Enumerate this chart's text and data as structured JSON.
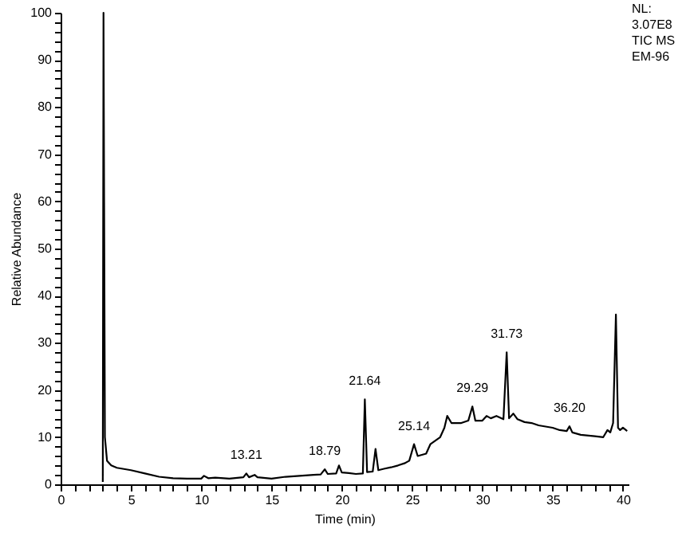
{
  "chart_data": {
    "type": "line",
    "xlabel": "Time (min)",
    "ylabel": "Relative Abundance",
    "x": [
      3.0,
      3.05,
      3.15,
      3.3,
      3.6,
      4,
      5,
      6,
      7,
      8,
      9,
      10,
      10.2,
      10.5,
      11,
      12,
      13,
      13.21,
      13.4,
      13.8,
      14,
      15,
      16,
      17,
      18,
      18.5,
      18.79,
      19,
      19.6,
      19.8,
      20,
      20.5,
      21,
      21.5,
      21.64,
      21.8,
      22.2,
      22.4,
      22.6,
      23,
      23.5,
      24,
      24.5,
      24.8,
      25.14,
      25.4,
      26,
      26.3,
      27,
      27.3,
      27.5,
      27.8,
      28.5,
      29,
      29.29,
      29.5,
      30,
      30.3,
      30.6,
      31,
      31.5,
      31.73,
      31.9,
      32.2,
      32.5,
      33,
      33.5,
      34,
      35,
      35.5,
      36,
      36.2,
      36.4,
      37,
      38,
      38.6,
      38.9,
      39.1,
      39.3,
      39.5,
      39.65,
      39.8,
      40,
      40.3
    ],
    "series": [
      {
        "color": "#000000",
        "values": [
          0.5,
          100,
          10,
          5,
          4,
          3.5,
          3,
          2.3,
          1.6,
          1.3,
          1.2,
          1.2,
          1.8,
          1.3,
          1.4,
          1.2,
          1.5,
          2.3,
          1.5,
          2,
          1.5,
          1.2,
          1.6,
          1.8,
          2,
          2.1,
          3.2,
          2.2,
          2.3,
          4,
          2.5,
          2.4,
          2.2,
          2.3,
          18,
          2.6,
          2.7,
          7.5,
          3,
          3.3,
          3.6,
          4,
          4.5,
          5,
          8.5,
          6,
          6.5,
          8.5,
          10,
          12,
          14.5,
          13,
          13,
          13.5,
          16.5,
          13.5,
          13.5,
          14.5,
          14,
          14.5,
          13.8,
          28,
          14,
          15,
          13.8,
          13.2,
          13,
          12.5,
          12,
          11.5,
          11.3,
          12.3,
          11,
          10.5,
          10.2,
          10,
          11.5,
          11,
          13,
          36,
          12,
          11.5,
          12,
          11.3
        ]
      }
    ],
    "xlim": [
      0,
      40.4
    ],
    "ylim": [
      0,
      100
    ],
    "xticks": [
      0,
      {
        "value": 1,
        "label": null
      },
      {
        "value": 2,
        "label": null
      },
      {
        "value": 3,
        "label": null
      },
      {
        "value": 4,
        "label": null
      },
      5,
      {
        "value": 6,
        "label": null
      },
      {
        "value": 7,
        "label": null
      },
      {
        "value": 8,
        "label": null
      },
      {
        "value": 9,
        "label": null
      },
      10,
      {
        "value": 11,
        "label": null
      },
      {
        "value": 12,
        "label": null
      },
      {
        "value": 13,
        "label": null
      },
      {
        "value": 14,
        "label": null
      },
      15,
      {
        "value": 16,
        "label": null
      },
      {
        "value": 17,
        "label": null
      },
      {
        "value": 18,
        "label": null
      },
      {
        "value": 19,
        "label": null
      },
      20,
      {
        "value": 21,
        "label": null
      },
      {
        "value": 22,
        "label": null
      },
      {
        "value": 23,
        "label": null
      },
      {
        "value": 24,
        "label": null
      },
      25,
      {
        "value": 26,
        "label": null
      },
      {
        "value": 27,
        "label": null
      },
      {
        "value": 28,
        "label": null
      },
      {
        "value": 29,
        "label": null
      },
      30,
      {
        "value": 31,
        "label": null
      },
      {
        "value": 32,
        "label": null
      },
      {
        "value": 33,
        "label": null
      },
      {
        "value": 34,
        "label": null
      },
      35,
      {
        "value": 36,
        "label": null
      },
      {
        "value": 37,
        "label": null
      },
      {
        "value": 38,
        "label": null
      },
      {
        "value": 39,
        "label": null
      },
      40
    ],
    "yticks": [
      0,
      {
        "value": 2,
        "label": null
      },
      {
        "value": 4,
        "label": null
      },
      {
        "value": 6,
        "label": null
      },
      {
        "value": 8,
        "label": null
      },
      10,
      {
        "value": 12,
        "label": null
      },
      {
        "value": 14,
        "label": null
      },
      {
        "value": 16,
        "label": null
      },
      {
        "value": 18,
        "label": null
      },
      20,
      {
        "value": 22,
        "label": null
      },
      {
        "value": 24,
        "label": null
      },
      {
        "value": 26,
        "label": null
      },
      {
        "value": 28,
        "label": null
      },
      30,
      {
        "value": 32,
        "label": null
      },
      {
        "value": 34,
        "label": null
      },
      {
        "value": 36,
        "label": null
      },
      {
        "value": 38,
        "label": null
      },
      40,
      {
        "value": 42,
        "label": null
      },
      {
        "value": 44,
        "label": null
      },
      {
        "value": 46,
        "label": null
      },
      {
        "value": 48,
        "label": null
      },
      50,
      {
        "value": 52,
        "label": null
      },
      {
        "value": 54,
        "label": null
      },
      {
        "value": 56,
        "label": null
      },
      {
        "value": 58,
        "label": null
      },
      60,
      {
        "value": 62,
        "label": null
      },
      {
        "value": 64,
        "label": null
      },
      {
        "value": 66,
        "label": null
      },
      {
        "value": 68,
        "label": null
      },
      70,
      {
        "value": 72,
        "label": null
      },
      {
        "value": 74,
        "label": null
      },
      {
        "value": 76,
        "label": null
      },
      {
        "value": 78,
        "label": null
      },
      80,
      {
        "value": 82,
        "label": null
      },
      {
        "value": 84,
        "label": null
      },
      {
        "value": 86,
        "label": null
      },
      {
        "value": 88,
        "label": null
      },
      90,
      {
        "value": 92,
        "label": null
      },
      {
        "value": 94,
        "label": null
      },
      {
        "value": 96,
        "label": null
      },
      {
        "value": 98,
        "label": null
      },
      100
    ],
    "grid": false,
    "line_style": "solid",
    "marker": "none",
    "annotations": [
      {
        "text": "13.21",
        "x": 13.21,
        "y": 2.3
      },
      {
        "text": "18.79",
        "x": 18.79,
        "y": 3.2
      },
      {
        "text": "21.64",
        "x": 21.64,
        "y": 18
      },
      {
        "text": "25.14",
        "x": 25.14,
        "y": 8.5
      },
      {
        "text": "29.29",
        "x": 29.29,
        "y": 16.5
      },
      {
        "text": "31.73",
        "x": 31.73,
        "y": 28
      },
      {
        "text": "36.20",
        "x": 36.2,
        "y": 12.3
      },
      "NL:",
      "3.07E8",
      "TIC  MS",
      "EM-96"
    ]
  }
}
